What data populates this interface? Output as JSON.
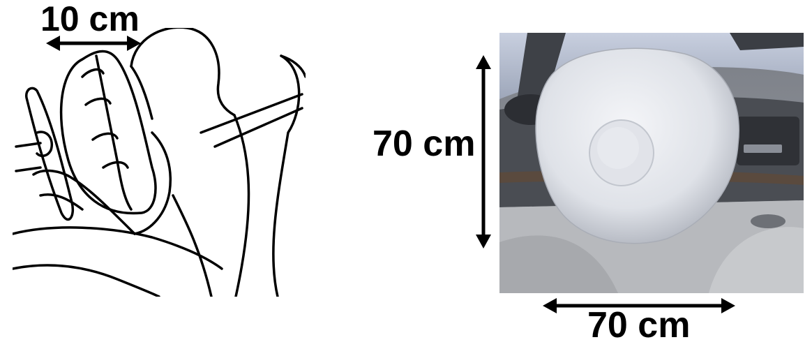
{
  "labels": {
    "depth": "10 cm",
    "height": "70 cm",
    "width": "70 cm"
  },
  "figures": {
    "left_icon": "driver-airbag-sketch",
    "right_icon": "inflated-airbag-photo"
  },
  "colors": {
    "ink": "#000000",
    "airbag": "#e6e8ee",
    "cabin": "#6f7279",
    "windshield": "#b9c2d4"
  }
}
